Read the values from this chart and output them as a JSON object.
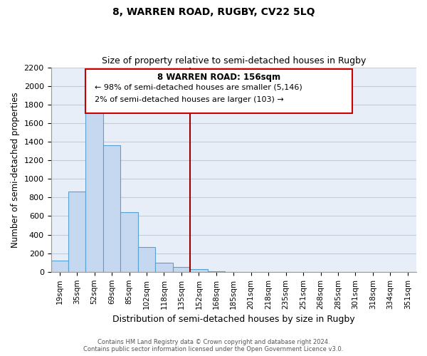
{
  "title": "8, WARREN ROAD, RUGBY, CV22 5LQ",
  "subtitle": "Size of property relative to semi-detached houses in Rugby",
  "xlabel": "Distribution of semi-detached houses by size in Rugby",
  "ylabel": "Number of semi-detached properties",
  "bar_labels": [
    "19sqm",
    "35sqm",
    "52sqm",
    "69sqm",
    "85sqm",
    "102sqm",
    "118sqm",
    "135sqm",
    "152sqm",
    "168sqm",
    "185sqm",
    "201sqm",
    "218sqm",
    "235sqm",
    "251sqm",
    "268sqm",
    "285sqm",
    "301sqm",
    "318sqm",
    "334sqm",
    "351sqm"
  ],
  "bar_heights": [
    120,
    865,
    1775,
    1360,
    645,
    270,
    100,
    50,
    30,
    5,
    0,
    0,
    0,
    0,
    0,
    0,
    0,
    0,
    0,
    0,
    0
  ],
  "bar_color": "#c5d8f0",
  "bar_edge_color": "#5a9fd4",
  "vline_index": 8,
  "vline_color": "#990000",
  "ylim": [
    0,
    2200
  ],
  "yticks": [
    0,
    200,
    400,
    600,
    800,
    1000,
    1200,
    1400,
    1600,
    1800,
    2000,
    2200
  ],
  "annotation_title": "8 WARREN ROAD: 156sqm",
  "annotation_line1": "← 98% of semi-detached houses are smaller (5,146)",
  "annotation_line2": "2% of semi-detached houses are larger (103) →",
  "footer_line1": "Contains HM Land Registry data © Crown copyright and database right 2024.",
  "footer_line2": "Contains public sector information licensed under the Open Government Licence v3.0.",
  "bg_color": "#e8eef8",
  "grid_color": "#c0ccdc"
}
